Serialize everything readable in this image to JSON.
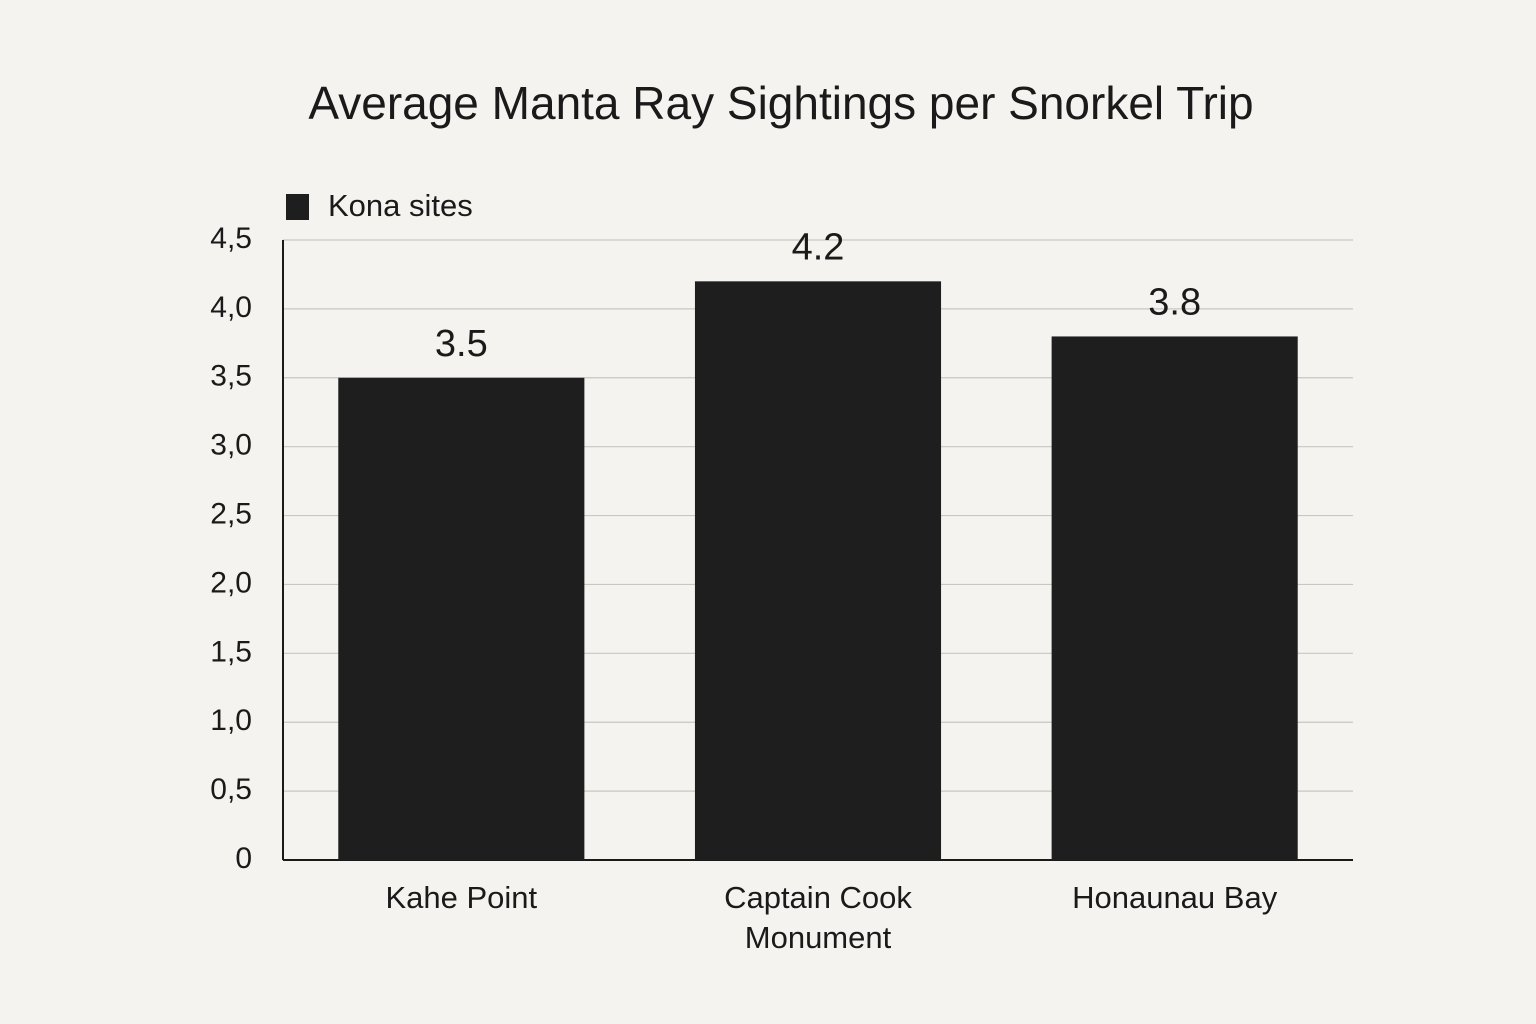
{
  "chart_data": {
    "type": "bar",
    "title": "Average Manta Ray Sightings per Snorkel Trip",
    "categories": [
      "Kahe Point",
      "Captain Cook Monument",
      "Honaunau Bay"
    ],
    "series": [
      {
        "name": "Kona sites",
        "color": "#1e1e1e",
        "values": [
          3.5,
          4.2,
          3.8
        ]
      }
    ],
    "ylim": [
      0,
      4.5
    ],
    "yticks": [
      0,
      {
        "value": 0.5,
        "label": "0,5"
      },
      {
        "value": 1.0,
        "label": "1,0"
      },
      {
        "value": 1.5,
        "label": "1,5"
      },
      {
        "value": 2.0,
        "label": "2,0"
      },
      {
        "value": 2.5,
        "label": "2,5"
      },
      {
        "value": 3.0,
        "label": "3,0"
      },
      {
        "value": 3.5,
        "label": "3,5"
      },
      {
        "value": 4.0,
        "label": "4,0"
      },
      {
        "value": 4.5,
        "label": "4,5"
      }
    ],
    "grid": true,
    "legend": "top-left"
  }
}
